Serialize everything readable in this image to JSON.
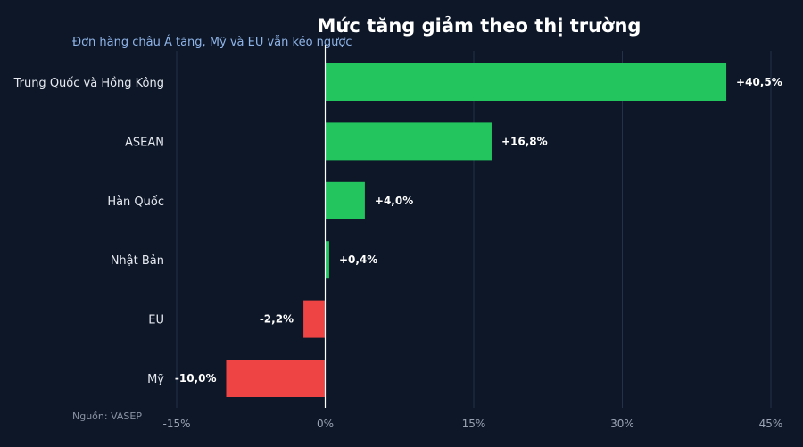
{
  "chart_data": {
    "type": "bar",
    "orientation": "horizontal",
    "title": "Mức tăng giảm theo thị trường",
    "subtitle": "Đơn hàng châu Á tăng, Mỹ và EU vẫn kéo ngược",
    "source": "Nguồn: VASEP",
    "categories": [
      "Trung Quốc và Hồng Kông",
      "ASEAN",
      "Hàn Quốc",
      "Nhật Bản",
      "EU",
      "Mỹ"
    ],
    "values": [
      40.5,
      16.8,
      4.0,
      0.4,
      -2.2,
      -10.0
    ],
    "value_labels": [
      "+40,5%",
      "+16,8%",
      "+4,0%",
      "+0,4%",
      "-2,2%",
      "-10,0%"
    ],
    "xlim": [
      -15,
      45
    ],
    "xticks": [
      -15,
      0,
      15,
      30,
      45
    ],
    "xtick_labels": [
      "-15%",
      "0%",
      "15%",
      "30%",
      "45%"
    ],
    "grid": true,
    "colors": {
      "positive": "#22c55e",
      "negative": "#ef4444",
      "background": "#0d1728",
      "grid": "#243247",
      "zero_line": "#ffffff"
    }
  }
}
